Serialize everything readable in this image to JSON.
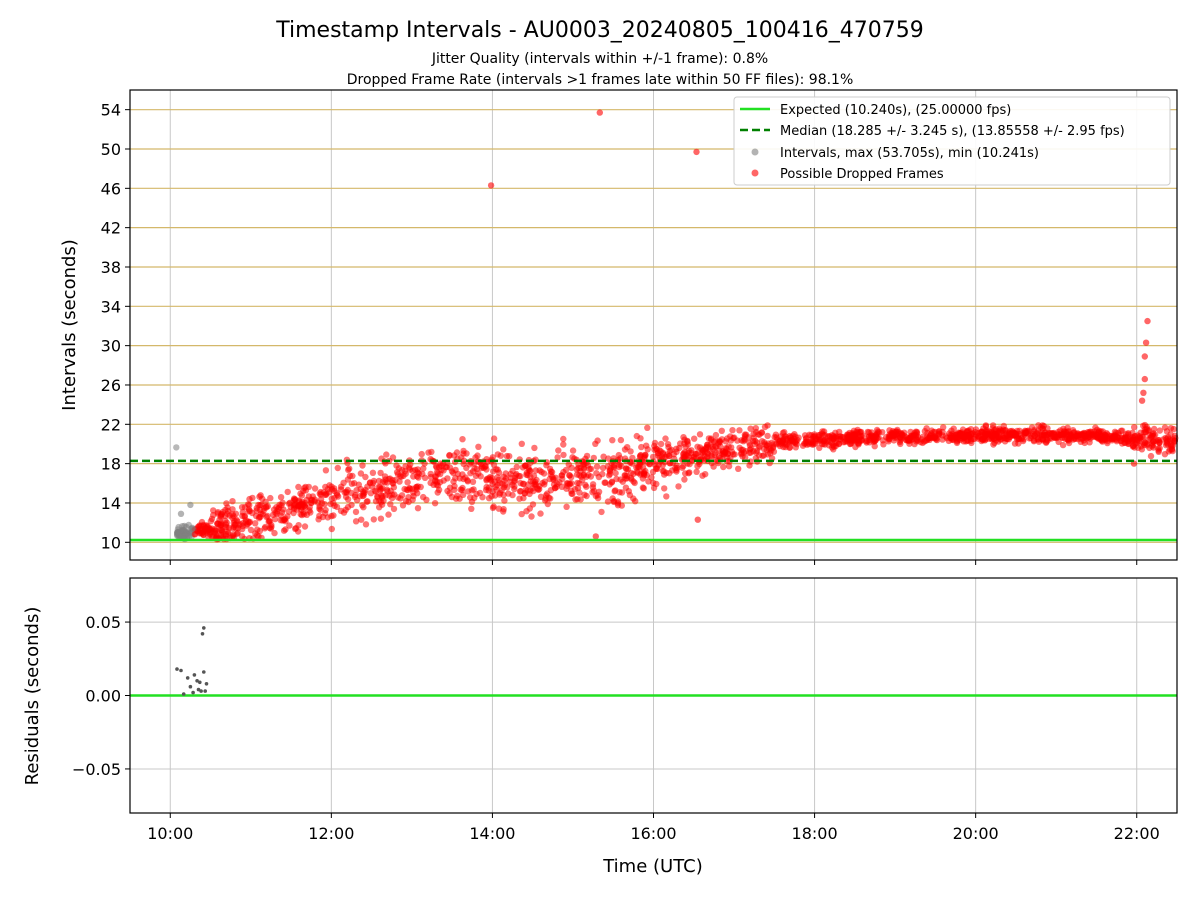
{
  "figure": {
    "title": "Timestamp Intervals - AU0003_20240805_100416_470759",
    "subtitle_line1": "Jitter Quality (intervals within +/-1 frame): 0.8%",
    "subtitle_line2": "Dropped Frame Rate (intervals >1 frames late within 50 FF files): 98.1%"
  },
  "colors": {
    "expected": "#22e022",
    "median": "#008000",
    "intervals": "#808080",
    "dropped": "#ff0000",
    "hgrid_top": "#d4b86a",
    "grid": "#c8c8c8"
  },
  "chart_data": [
    {
      "type": "scatter",
      "ylabel": "Intervals (seconds)",
      "xlim": [
        "09:30",
        "22:30"
      ],
      "ylim": [
        8.2,
        56
      ],
      "yticks": [
        10,
        14,
        18,
        22,
        26,
        30,
        34,
        38,
        42,
        46,
        50,
        54
      ],
      "grid": true,
      "legend_placement": "top-right",
      "lines": [
        {
          "name": "Expected (10.240s), (25.00000 fps)",
          "y": 10.24,
          "style": "solid"
        },
        {
          "name": "Median (18.285 +/- 3.245 s), (13.85558 +/- 2.95 fps)",
          "y": 18.285,
          "style": "dashed"
        }
      ],
      "scatter_series": [
        {
          "name": "Intervals, max (53.705s), min (10.241s)"
        },
        {
          "name": "Possible Dropped Frames"
        }
      ],
      "trend": [
        [
          "10:05",
          10.9
        ],
        [
          "10:20",
          11.2
        ],
        [
          "10:40",
          11.5
        ],
        [
          "11:00",
          12.4
        ],
        [
          "11:30",
          13.5
        ],
        [
          "12:00",
          14.6
        ],
        [
          "12:30",
          15.4
        ],
        [
          "13:00",
          16.3
        ],
        [
          "13:30",
          17.2
        ],
        [
          "14:00",
          16.8
        ],
        [
          "14:30",
          16.1
        ],
        [
          "15:00",
          16.6
        ],
        [
          "15:30",
          16.9
        ],
        [
          "16:00",
          18.0
        ],
        [
          "16:30",
          18.9
        ],
        [
          "17:00",
          19.5
        ],
        [
          "17:30",
          20.3
        ],
        [
          "18:00",
          20.4
        ],
        [
          "18:30",
          20.6
        ],
        [
          "19:00",
          20.7
        ],
        [
          "19:30",
          20.8
        ],
        [
          "20:00",
          20.9
        ],
        [
          "20:30",
          20.9
        ],
        [
          "21:00",
          20.9
        ],
        [
          "21:30",
          20.8
        ],
        [
          "22:00",
          20.6
        ],
        [
          "22:30",
          20.2
        ]
      ],
      "outliers": [
        [
          "13:59",
          46.3
        ],
        [
          "15:20",
          53.7
        ],
        [
          "16:32",
          49.7
        ],
        [
          "22:08",
          32.5
        ],
        [
          "22:07",
          30.3
        ],
        [
          "22:06",
          28.9
        ],
        [
          "22:06",
          26.6
        ],
        [
          "22:05",
          25.2
        ],
        [
          "22:04",
          24.4
        ],
        [
          "21:58",
          18.0
        ],
        [
          "15:17",
          10.6
        ],
        [
          "16:33",
          12.3
        ],
        [
          "10:15",
          13.8
        ],
        [
          "10:08",
          12.9
        ]
      ]
    },
    {
      "type": "scatter",
      "xlabel": "Time (UTC)",
      "ylabel": "Residuals (seconds)",
      "xlim": [
        "09:30",
        "22:30"
      ],
      "ylim": [
        -0.08,
        0.08
      ],
      "yticks": [
        -0.05,
        0.0,
        0.05
      ],
      "ytick_labels": [
        "−0.05",
        "0.00",
        "0.05"
      ],
      "xticks": [
        "10:00",
        "12:00",
        "14:00",
        "16:00",
        "18:00",
        "20:00",
        "22:00"
      ],
      "grid": true,
      "zero_line": 0.0,
      "points": [
        [
          "10:05",
          0.018
        ],
        [
          "10:08",
          0.017
        ],
        [
          "10:10",
          0.001
        ],
        [
          "10:13",
          0.012
        ],
        [
          "10:15",
          0.006
        ],
        [
          "10:17",
          0.002
        ],
        [
          "10:18",
          0.014
        ],
        [
          "10:20",
          0.01
        ],
        [
          "10:21",
          0.004
        ],
        [
          "10:22",
          0.009
        ],
        [
          "10:23",
          0.003
        ],
        [
          "10:24",
          0.042
        ],
        [
          "10:25",
          0.046
        ],
        [
          "10:25",
          0.016
        ],
        [
          "10:26",
          0.003
        ],
        [
          "10:27",
          0.008
        ]
      ]
    }
  ]
}
